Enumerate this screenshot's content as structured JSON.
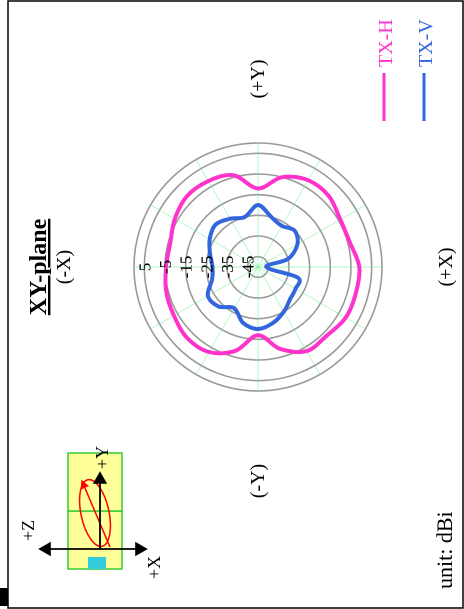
{
  "chart_data": {
    "type": "polar",
    "title": "XY-plane",
    "unit_label": "unit: dBi",
    "radial_ticks": [
      "5",
      "-5",
      "-15",
      "-25",
      "-35",
      "-45"
    ],
    "radial_values": [
      5,
      -5,
      -15,
      -25,
      -35,
      -45
    ],
    "r_range": [
      -50,
      10
    ],
    "grid": true,
    "direction_labels": {
      "top": "(-X)",
      "bottom": "(+X)",
      "left": "(-Y)",
      "right": "(+Y)"
    },
    "legend_position": "right",
    "series": [
      {
        "name": "TX-H",
        "color": "#ff33cc",
        "angle_deg": [
          0,
          15,
          30,
          45,
          60,
          75,
          90,
          105,
          120,
          135,
          150,
          165,
          180,
          195,
          210,
          225,
          240,
          255,
          270,
          285,
          300,
          315,
          330,
          345
        ],
        "values": [
          -5.5,
          -6,
          -3.5,
          -1.5,
          -2,
          -4,
          -12,
          -5,
          -1.5,
          -1.5,
          -4,
          -4,
          -1,
          -1,
          -1,
          -3,
          -3,
          -9,
          -17,
          -8,
          -2.5,
          -1.5,
          -3,
          -4
        ]
      },
      {
        "name": "TX-V",
        "color": "#3366dd",
        "angle_deg": [
          0,
          15,
          30,
          45,
          60,
          75,
          90,
          105,
          120,
          135,
          150,
          165,
          180,
          195,
          210,
          225,
          240,
          255,
          270,
          285,
          300,
          315,
          330,
          345
        ],
        "values": [
          -28,
          -26,
          -23,
          -21,
          -23,
          -25,
          -20,
          -25,
          -27,
          -25,
          -28,
          -35,
          -46,
          -30,
          -29,
          -28,
          -25,
          -22,
          -20,
          -22,
          -27,
          -23,
          -22,
          -27
        ]
      }
    ]
  },
  "inset": {
    "labels": {
      "z": "+Z",
      "y": "+Y",
      "x": "+X"
    },
    "colors": {
      "box": "#ffff99",
      "box_border": "#33cc33",
      "antenna": "#ff0000",
      "pad": "#33ccdd"
    }
  },
  "colors": {
    "grid_major": "#999999",
    "grid_minor": "#66ee88",
    "frame": "#000000",
    "corner": "#006600"
  }
}
